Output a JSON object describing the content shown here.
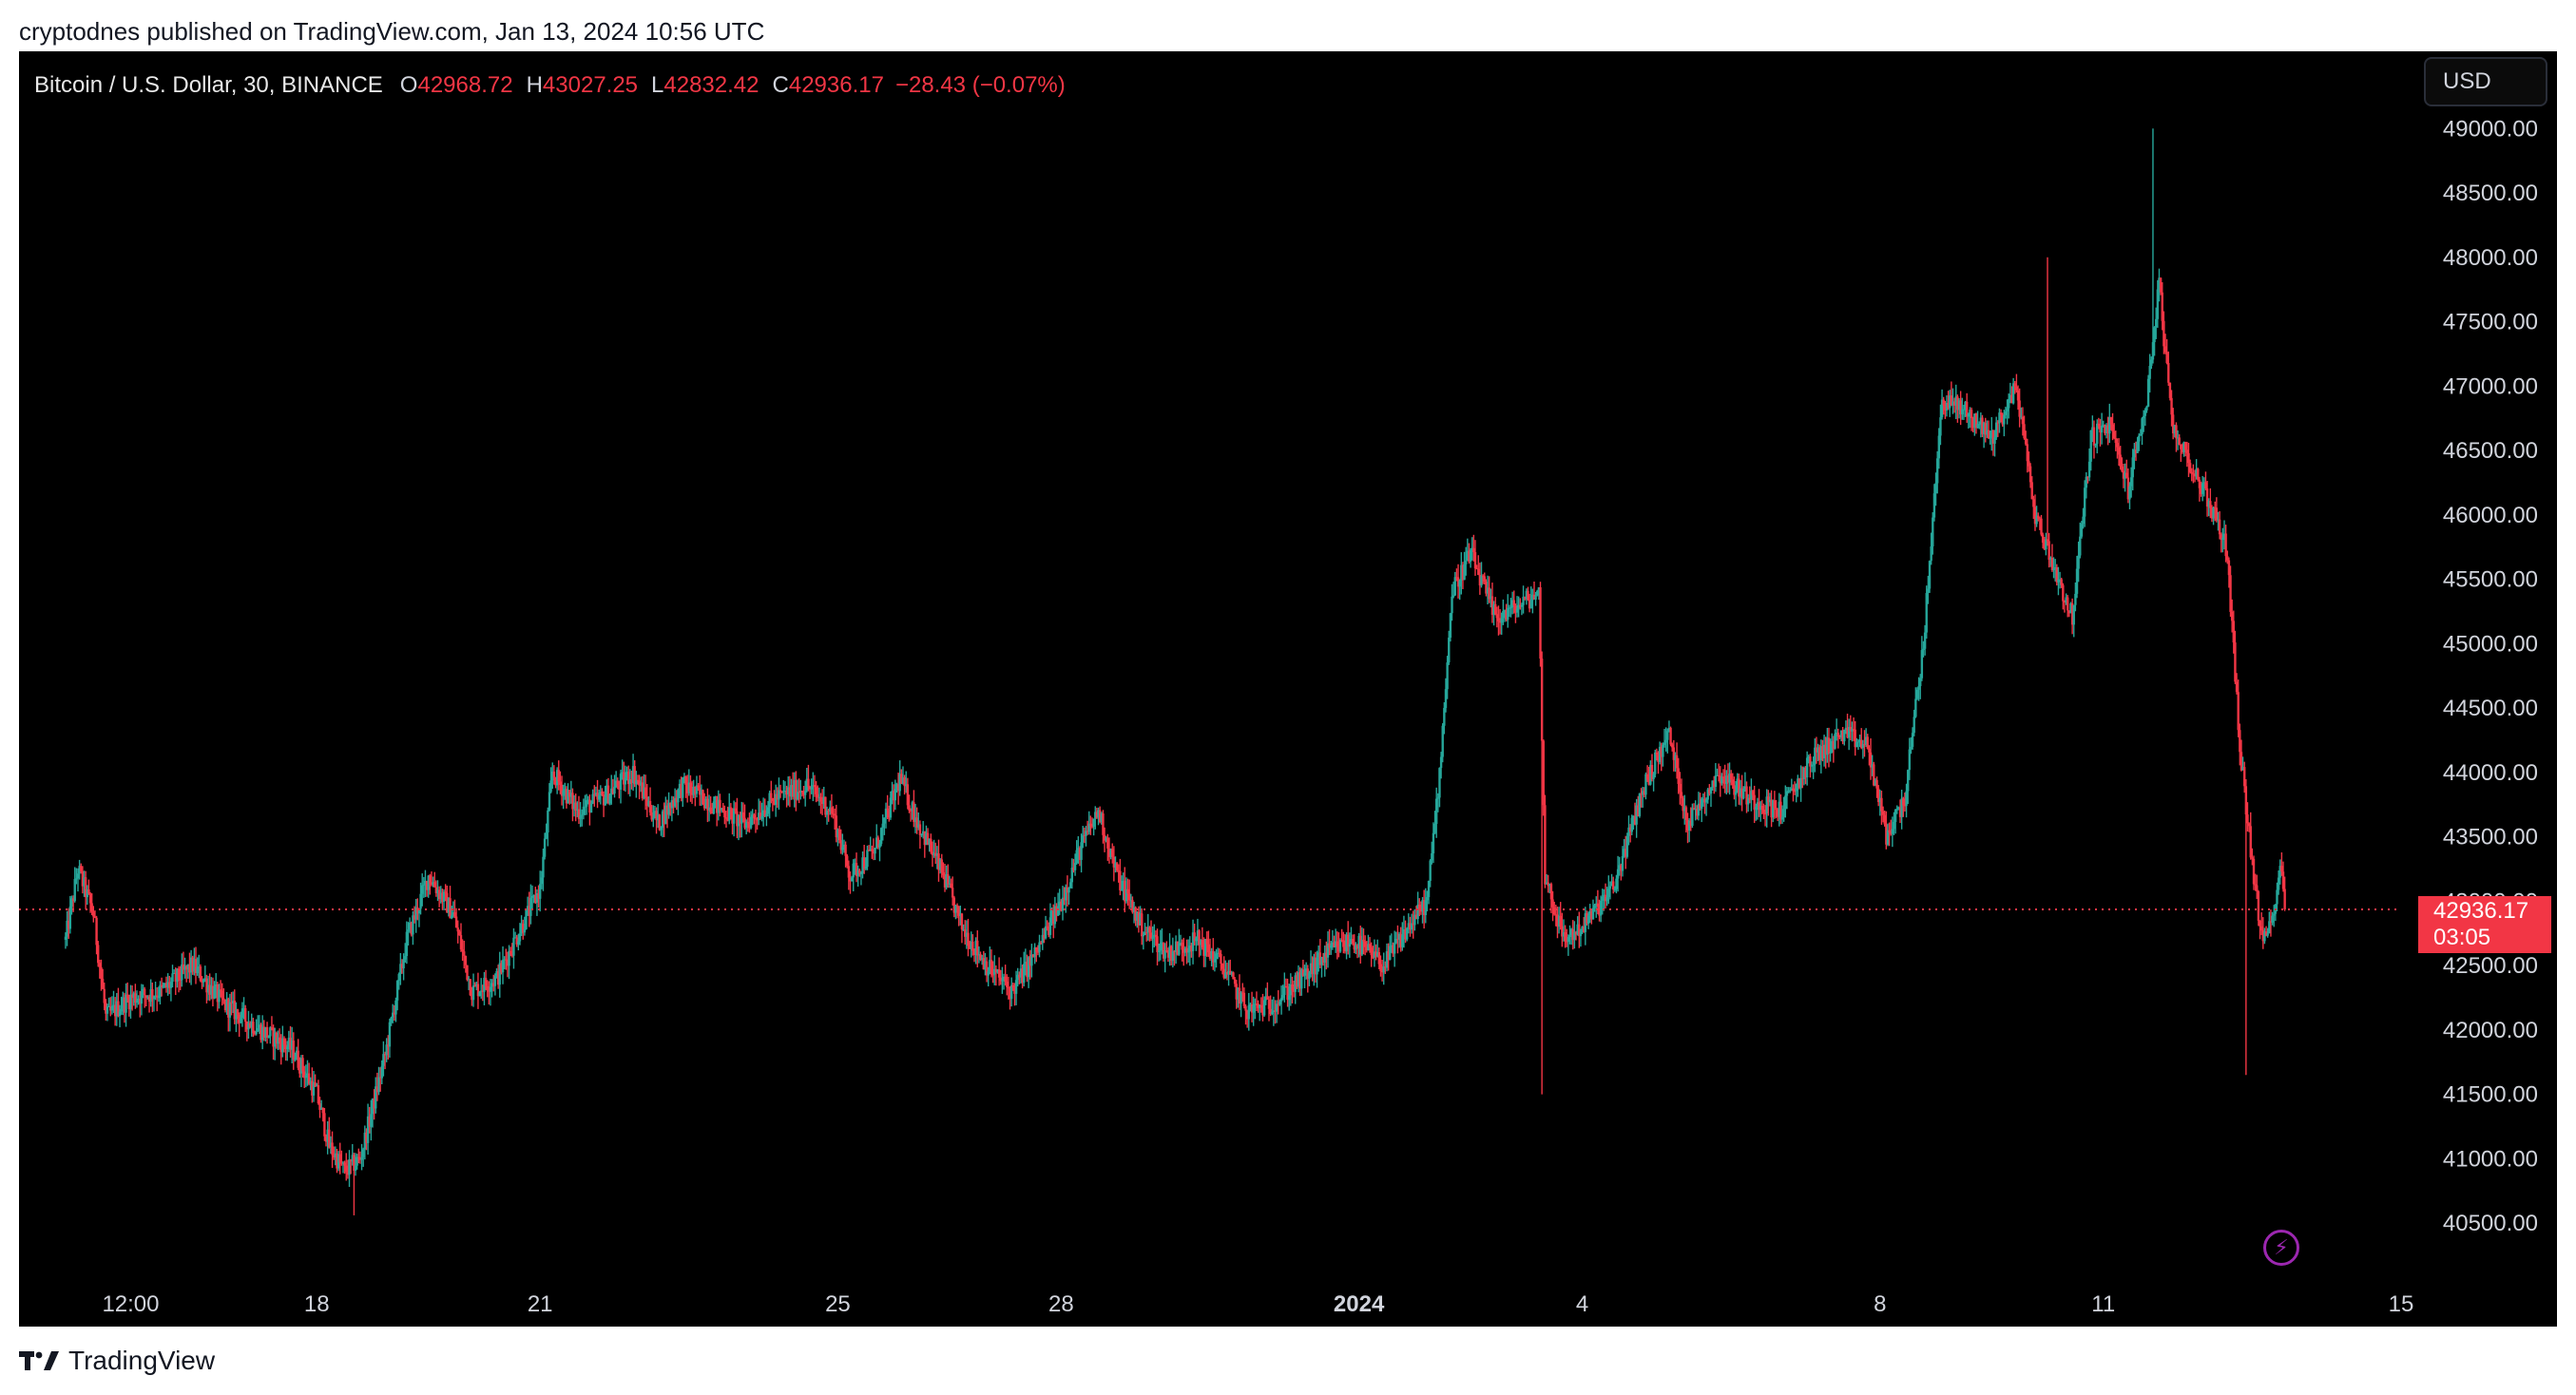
{
  "header": {
    "publisher": "cryptodnes published on TradingView.com, Jan 13, 2024 10:56 UTC"
  },
  "legend": {
    "symbol": "Bitcoin / U.S. Dollar, 30, BINANCE",
    "open_label": "O",
    "open": "42968.72",
    "high_label": "H",
    "high": "43027.25",
    "low_label": "L",
    "low": "42832.42",
    "close_label": "C",
    "close": "42936.17",
    "change": "−28.43 (−0.07%)"
  },
  "currency_button": "USD",
  "price_tag": {
    "price": "42936.17",
    "countdown": "03:05"
  },
  "brand": {
    "name": "TradingView",
    "logo_icon": "tradingview-logo-icon"
  },
  "colors": {
    "up": "#26a69a",
    "down": "#f23645",
    "background": "#000000",
    "axis_text": "#d1d4dc",
    "price_line": "#f23645"
  },
  "chart_data": {
    "type": "candlestick",
    "interval": "30",
    "ylim": [
      40080,
      49600
    ],
    "xlim": [
      "2023-12-14",
      "2024-01-15"
    ],
    "y_ticks": [
      40500,
      41000,
      41500,
      42000,
      42500,
      43000,
      43500,
      44000,
      44500,
      45000,
      45500,
      46000,
      46500,
      47000,
      47500,
      48000,
      48500,
      49000
    ],
    "y_tick_labels": [
      "40500.00",
      "41000.00",
      "41500.00",
      "42000.00",
      "42500.00",
      "43000.00",
      "43500.00",
      "44000.00",
      "44500.00",
      "45000.00",
      "45500.00",
      "46000.00",
      "46500.00",
      "47000.00",
      "47500.00",
      "48000.00",
      "48500.00",
      "49000.00"
    ],
    "x_ticks": [
      {
        "label": "12:00",
        "date": "2023-12-15 12:00"
      },
      {
        "label": "18",
        "date": "2023-12-18"
      },
      {
        "label": "21",
        "date": "2023-12-21"
      },
      {
        "label": "25",
        "date": "2023-12-25"
      },
      {
        "label": "28",
        "date": "2023-12-28"
      },
      {
        "label": "2024",
        "date": "2024-01-01",
        "bold": true
      },
      {
        "label": "4",
        "date": "2024-01-04"
      },
      {
        "label": "8",
        "date": "2024-01-08"
      },
      {
        "label": "11",
        "date": "2024-01-11"
      },
      {
        "label": "15",
        "date": "2024-01-15"
      }
    ],
    "last_price": 42936.17,
    "price_path": [
      [
        "2023-12-14 15:00",
        42700
      ],
      [
        "2023-12-14 19:00",
        43250
      ],
      [
        "2023-12-15 00:00",
        42900
      ],
      [
        "2023-12-15 04:00",
        42100
      ],
      [
        "2023-12-15 12:00",
        42250
      ],
      [
        "2023-12-15 22:00",
        42300
      ],
      [
        "2023-12-16 08:00",
        42500
      ],
      [
        "2023-12-16 18:00",
        42200
      ],
      [
        "2023-12-17 06:00",
        42000
      ],
      [
        "2023-12-17 16:00",
        41850
      ],
      [
        "2023-12-18 00:00",
        41500
      ],
      [
        "2023-12-18 04:00",
        41100
      ],
      [
        "2023-12-18 09:00",
        40900
      ],
      [
        "2023-12-18 14:00",
        41000
      ],
      [
        "2023-12-18 22:00",
        41800
      ],
      [
        "2023-12-19 05:00",
        42700
      ],
      [
        "2023-12-19 12:00",
        43200
      ],
      [
        "2023-12-19 20:00",
        42900
      ],
      [
        "2023-12-20 02:00",
        42300
      ],
      [
        "2023-12-20 10:00",
        42400
      ],
      [
        "2023-12-20 18:00",
        42800
      ],
      [
        "2023-12-21 00:00",
        43100
      ],
      [
        "2023-12-21 04:00",
        44000
      ],
      [
        "2023-12-21 12:00",
        43700
      ],
      [
        "2023-12-21 20:00",
        43800
      ],
      [
        "2023-12-22 06:00",
        44000
      ],
      [
        "2023-12-22 14:00",
        43600
      ],
      [
        "2023-12-22 22:00",
        43900
      ],
      [
        "2023-12-23 08:00",
        43750
      ],
      [
        "2023-12-23 18:00",
        43600
      ],
      [
        "2023-12-24 04:00",
        43800
      ],
      [
        "2023-12-24 14:00",
        43900
      ],
      [
        "2023-12-24 22:00",
        43700
      ],
      [
        "2023-12-25 04:00",
        43200
      ],
      [
        "2023-12-25 12:00",
        43400
      ],
      [
        "2023-12-25 20:00",
        43950
      ],
      [
        "2023-12-26 02:00",
        43600
      ],
      [
        "2023-12-26 10:00",
        43200
      ],
      [
        "2023-12-26 16:00",
        42800
      ],
      [
        "2023-12-27 00:00",
        42500
      ],
      [
        "2023-12-27 08:00",
        42300
      ],
      [
        "2023-12-27 16:00",
        42600
      ],
      [
        "2023-12-28 00:00",
        43000
      ],
      [
        "2023-12-28 06:00",
        43400
      ],
      [
        "2023-12-28 12:00",
        43700
      ],
      [
        "2023-12-28 18:00",
        43200
      ],
      [
        "2023-12-29 02:00",
        42800
      ],
      [
        "2023-12-29 10:00",
        42600
      ],
      [
        "2023-12-29 20:00",
        42700
      ],
      [
        "2023-12-30 04:00",
        42500
      ],
      [
        "2023-12-30 12:00",
        42150
      ],
      [
        "2023-12-30 20:00",
        42200
      ],
      [
        "2023-12-31 06:00",
        42400
      ],
      [
        "2023-12-31 14:00",
        42600
      ],
      [
        "2023-12-31 22:00",
        42700
      ],
      [
        "2024-01-01 08:00",
        42500
      ],
      [
        "2024-01-01 16:00",
        42800
      ],
      [
        "2024-01-01 22:00",
        43000
      ],
      [
        "2024-01-02 02:00",
        44000
      ],
      [
        "2024-01-02 06:00",
        45400
      ],
      [
        "2024-01-02 12:00",
        45700
      ],
      [
        "2024-01-02 20:00",
        45200
      ],
      [
        "2024-01-03 04:00",
        45300
      ],
      [
        "2024-01-03 10:00",
        45400
      ],
      [
        "2024-01-03 12:00",
        43200
      ],
      [
        "2024-01-03 18:00",
        42700
      ],
      [
        "2024-01-04 00:00",
        42800
      ],
      [
        "2024-01-04 10:00",
        43100
      ],
      [
        "2024-01-04 20:00",
        43900
      ],
      [
        "2024-01-05 04:00",
        44300
      ],
      [
        "2024-01-05 10:00",
        43600
      ],
      [
        "2024-01-05 20:00",
        44000
      ],
      [
        "2024-01-06 06:00",
        43800
      ],
      [
        "2024-01-06 16:00",
        43700
      ],
      [
        "2024-01-07 02:00",
        44100
      ],
      [
        "2024-01-07 12:00",
        44300
      ],
      [
        "2024-01-07 20:00",
        44200
      ],
      [
        "2024-01-08 02:00",
        43500
      ],
      [
        "2024-01-08 08:00",
        43800
      ],
      [
        "2024-01-08 14:00",
        45000
      ],
      [
        "2024-01-08 20:00",
        46900
      ],
      [
        "2024-01-09 04:00",
        46800
      ],
      [
        "2024-01-09 12:00",
        46600
      ],
      [
        "2024-01-09 20:00",
        47000
      ],
      [
        "2024-01-10 02:00",
        46000
      ],
      [
        "2024-01-10 08:00",
        45600
      ],
      [
        "2024-01-10 14:00",
        45200
      ],
      [
        "2024-01-10 20:00",
        46600
      ],
      [
        "2024-01-11 02:00",
        46700
      ],
      [
        "2024-01-11 08:00",
        46200
      ],
      [
        "2024-01-11 14:00",
        46900
      ],
      [
        "2024-01-11 18:00",
        47800
      ],
      [
        "2024-01-11 22:00",
        46700
      ],
      [
        "2024-01-12 06:00",
        46300
      ],
      [
        "2024-01-12 12:00",
        46000
      ],
      [
        "2024-01-12 16:00",
        45700
      ],
      [
        "2024-01-12 20:00",
        44200
      ],
      [
        "2024-01-13 00:00",
        43300
      ],
      [
        "2024-01-13 03:00",
        42700
      ],
      [
        "2024-01-13 06:00",
        42800
      ],
      [
        "2024-01-13 09:00",
        43300
      ],
      [
        "2024-01-13 10:56",
        42936.17
      ]
    ],
    "wick_extremes": [
      [
        "2023-12-18 12:00",
        40560,
        "low"
      ],
      [
        "2024-01-03 11:00",
        41500,
        "low"
      ],
      [
        "2024-01-10 06:00",
        48000,
        "high"
      ],
      [
        "2024-01-11 16:00",
        49000,
        "high"
      ],
      [
        "2024-01-12 22:00",
        41650,
        "low"
      ]
    ]
  }
}
